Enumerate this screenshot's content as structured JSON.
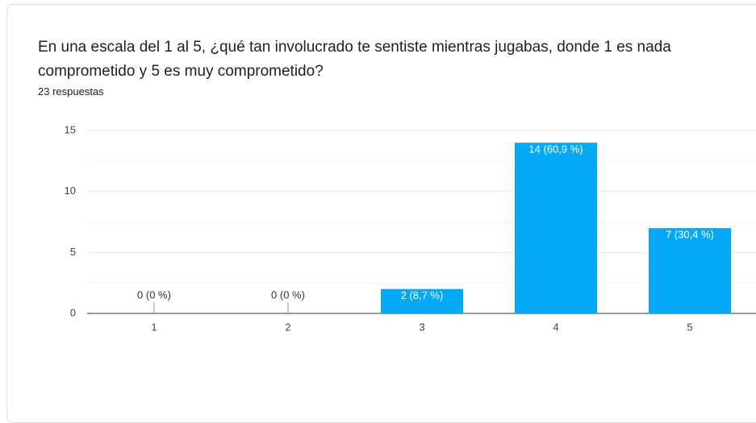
{
  "chart_data": {
    "type": "bar",
    "title": "En una escala del 1 al 5, ¿qué tan involucrado te sentiste mientras jugabas, donde 1 es nada comprometido y 5 es muy comprometido?",
    "subtitle": "23 respuestas",
    "categories": [
      "1",
      "2",
      "3",
      "4",
      "5"
    ],
    "values": [
      0,
      0,
      2,
      14,
      7
    ],
    "value_labels": [
      "0 (0 %)",
      "0 (0 %)",
      "2 (8,7 %)",
      "14 (60,9 %)",
      "7 (30,4 %)"
    ],
    "color": "#03a9f4",
    "ylim": [
      0,
      15
    ],
    "yticks": [
      0,
      5,
      10,
      15
    ],
    "minor_yticks": [
      2.5,
      7.5,
      12.5
    ],
    "grid": true
  }
}
